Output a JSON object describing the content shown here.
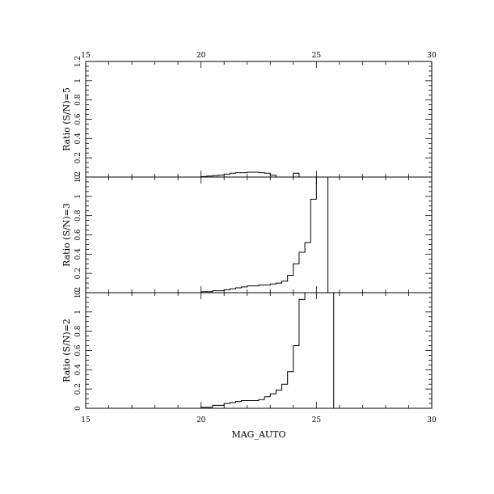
{
  "chart_data": [
    {
      "type": "line",
      "ylabel": "Ratio (S/N)=5",
      "xlim": [
        15,
        30
      ],
      "ylim": [
        0,
        1.2
      ],
      "yticks": [
        "0",
        "0.2",
        "0.4",
        "0.6",
        "0.8",
        "1",
        "1.2"
      ],
      "bins": {
        "edges": [
          20,
          20.25,
          20.5,
          20.75,
          21,
          21.25,
          21.5,
          21.75,
          22,
          22.25,
          22.5,
          22.75,
          23,
          23.25,
          23.5,
          23.75,
          24,
          24.25,
          24.5
        ],
        "values": [
          0.005,
          0.01,
          0.015,
          0.02,
          0.03,
          0.04,
          0.045,
          0.045,
          0.05,
          0.05,
          0.045,
          0.04,
          0.02,
          0.0,
          0.0,
          0.0,
          0.04,
          0.0
        ]
      }
    },
    {
      "type": "line",
      "ylabel": "Ratio (S/N)=3",
      "xlim": [
        15,
        30
      ],
      "ylim": [
        0,
        1.2
      ],
      "yticks": [
        "0",
        "0.2",
        "0.4",
        "0.6",
        "0.8",
        "1",
        "1.2"
      ],
      "bins": {
        "edges": [
          19.5,
          20,
          20.5,
          21,
          21.25,
          21.5,
          21.75,
          22,
          22.5,
          23,
          23.25,
          23.5,
          23.75,
          24,
          24.25,
          24.5,
          24.75,
          25,
          25.25,
          25.5
        ],
        "values": [
          0.0,
          0.01,
          0.02,
          0.03,
          0.04,
          0.05,
          0.06,
          0.07,
          0.08,
          0.09,
          0.1,
          0.12,
          0.18,
          0.3,
          0.42,
          0.52,
          0.97,
          1.3,
          2.0
        ]
      }
    },
    {
      "type": "line",
      "ylabel": "Ratio (S/N)=2",
      "xlabel": "MAG_AUTO",
      "xlim": [
        15,
        30
      ],
      "ylim": [
        0,
        1.2
      ],
      "xticks": [
        "15",
        "20",
        "25",
        "30"
      ],
      "yticks": [
        "0",
        "0.2",
        "0.4",
        "0.6",
        "0.8",
        "1",
        "1.2"
      ],
      "bins": {
        "edges": [
          19.5,
          20,
          20.5,
          21,
          21.25,
          21.5,
          21.75,
          22,
          22.5,
          22.75,
          23,
          23.25,
          23.5,
          23.75,
          24,
          24.25,
          24.5,
          24.75,
          25,
          25.25,
          25.5,
          25.75
        ],
        "values": [
          0.0,
          0.01,
          0.03,
          0.05,
          0.06,
          0.07,
          0.08,
          0.08,
          0.09,
          0.12,
          0.15,
          0.19,
          0.25,
          0.38,
          0.65,
          1.13,
          1.2,
          1.2,
          1.2,
          1.2,
          2.0
        ]
      }
    }
  ],
  "top_axis": {
    "xticks": [
      "15",
      "20",
      "25",
      "30"
    ]
  }
}
